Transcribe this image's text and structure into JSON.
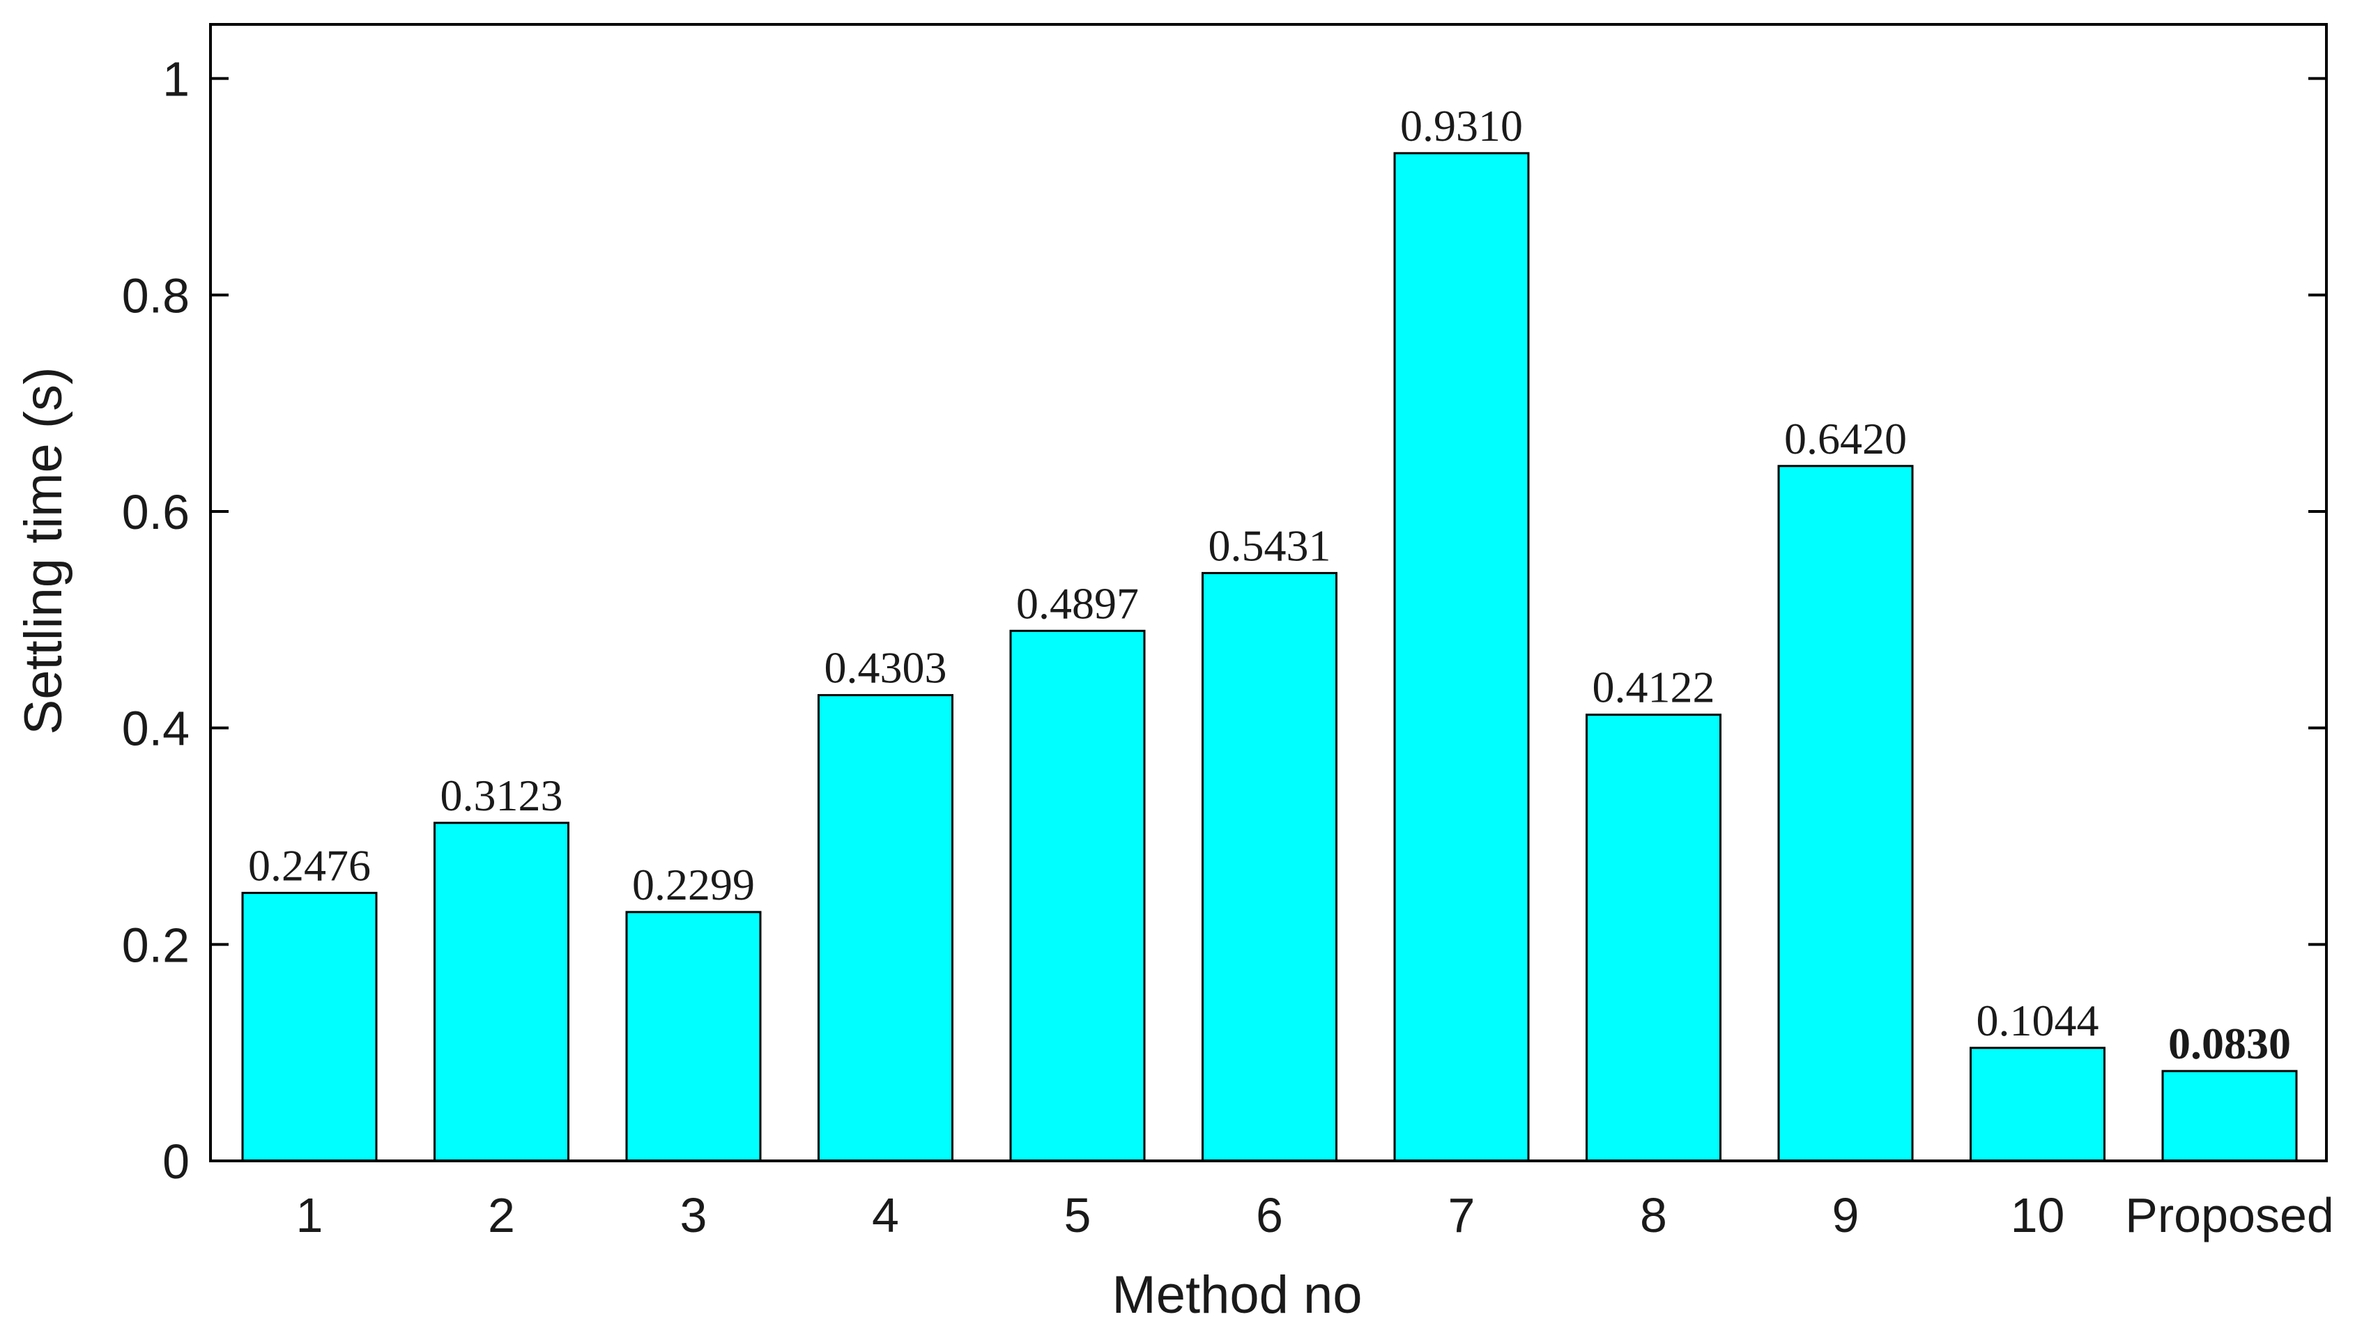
{
  "chart_data": {
    "type": "bar",
    "categories": [
      "1",
      "2",
      "3",
      "4",
      "5",
      "6",
      "7",
      "8",
      "9",
      "10",
      "Proposed"
    ],
    "values": [
      0.2476,
      0.3123,
      0.2299,
      0.4303,
      0.4897,
      0.5431,
      0.931,
      0.4122,
      0.642,
      0.1044,
      0.083
    ],
    "value_labels": [
      "0.2476",
      "0.3123",
      "0.2299",
      "0.4303",
      "0.4897",
      "0.5431",
      "0.9310",
      "0.4122",
      "0.6420",
      "0.1044",
      "0.0830"
    ],
    "bold_label_index": 10,
    "xlabel": "Method no",
    "ylabel": "Settling time (s)",
    "ylim": [
      0,
      1.05
    ],
    "yticks": [
      0,
      0.2,
      0.4,
      0.6,
      0.8,
      1
    ],
    "ytick_labels": [
      "0",
      "0.2",
      "0.4",
      "0.6",
      "0.8",
      "1"
    ],
    "grid": false,
    "bar_color": "#00ffff"
  }
}
